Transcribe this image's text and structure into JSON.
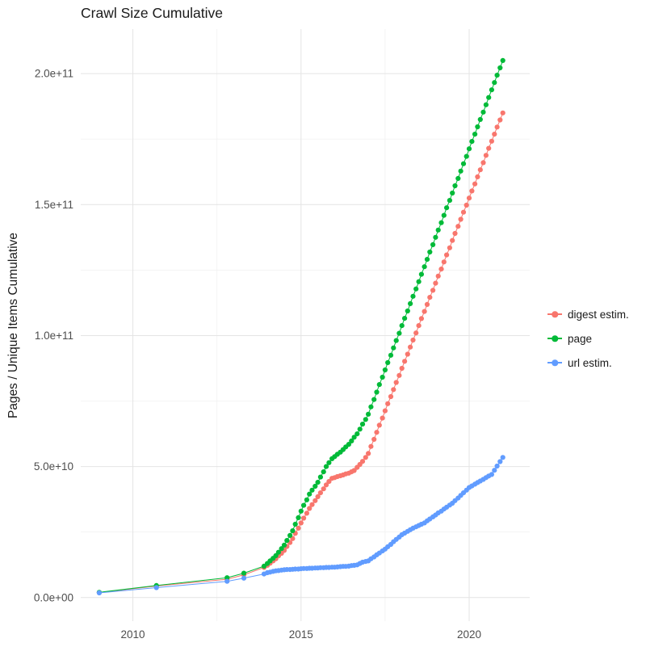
{
  "chart_data": {
    "type": "line",
    "marker": "point",
    "title": "Crawl Size Cumulative",
    "xlabel": "",
    "ylabel": "Pages / Unique Items Cumulative",
    "y_unit": 1000000000.0,
    "xlim": [
      2008.45,
      2021.8
    ],
    "ylim": [
      -9,
      217
    ],
    "grid": true,
    "legend_position": "right",
    "colors": {
      "grid_major": "#e4e4e4",
      "grid_minor": "#f2f2f2",
      "tick_text": "#4d4d4d",
      "title_text": "#1a1a1a",
      "background": "#ffffff"
    },
    "x_ticks": [
      {
        "value": 2010,
        "label": "2010"
      },
      {
        "value": 2015,
        "label": "2015"
      },
      {
        "value": 2020,
        "label": "2020"
      }
    ],
    "x_minor_ticks": [
      2012.5,
      2017.5
    ],
    "y_ticks": [
      {
        "value": 0,
        "label": "0.0e+00"
      },
      {
        "value": 50,
        "label": "5.0e+10"
      },
      {
        "value": 100,
        "label": "1.0e+11"
      },
      {
        "value": 150,
        "label": "1.5e+11"
      },
      {
        "value": 200,
        "label": "2.0e+11"
      }
    ],
    "y_minor_ticks": [
      25,
      75,
      125,
      175
    ],
    "series": [
      {
        "name": "digest estim.",
        "color": "#F8766D",
        "points": [
          [
            2009.0,
            1.9
          ],
          [
            2010.7,
            4.4
          ],
          [
            2012.8,
            7.0
          ],
          [
            2013.3,
            8.7
          ],
          [
            2013.9,
            11.5
          ],
          [
            2014.0,
            12.3
          ],
          [
            2014.08,
            13.1
          ],
          [
            2014.17,
            14.0
          ],
          [
            2014.25,
            14.8
          ],
          [
            2014.33,
            15.9
          ],
          [
            2014.42,
            16.9
          ],
          [
            2014.5,
            18.0
          ],
          [
            2014.58,
            19.5
          ],
          [
            2014.67,
            21.0
          ],
          [
            2014.75,
            22.5
          ],
          [
            2014.83,
            24.5
          ],
          [
            2014.92,
            26.5
          ],
          [
            2015.0,
            28.5
          ],
          [
            2015.08,
            30.3
          ],
          [
            2015.17,
            32.2
          ],
          [
            2015.25,
            34.0
          ],
          [
            2015.33,
            35.5
          ],
          [
            2015.42,
            37.0
          ],
          [
            2015.5,
            38.5
          ],
          [
            2015.58,
            40.0
          ],
          [
            2015.67,
            41.5
          ],
          [
            2015.75,
            43.0
          ],
          [
            2015.83,
            44.3
          ],
          [
            2015.92,
            45.5
          ],
          [
            2016.0,
            45.8
          ],
          [
            2016.08,
            46.2
          ],
          [
            2016.17,
            46.5
          ],
          [
            2016.25,
            46.8
          ],
          [
            2016.33,
            47.2
          ],
          [
            2016.42,
            47.5
          ],
          [
            2016.5,
            48.0
          ],
          [
            2016.58,
            48.5
          ],
          [
            2016.67,
            49.7
          ],
          [
            2016.75,
            50.8
          ],
          [
            2016.83,
            52.0
          ],
          [
            2016.92,
            53.5
          ],
          [
            2017.0,
            55.0
          ],
          [
            2017.08,
            57.7
          ],
          [
            2017.17,
            60.4
          ],
          [
            2017.25,
            63.1
          ],
          [
            2017.33,
            65.8
          ],
          [
            2017.42,
            68.5
          ],
          [
            2017.5,
            71.3
          ],
          [
            2017.58,
            74.0
          ],
          [
            2017.67,
            76.7
          ],
          [
            2017.75,
            79.4
          ],
          [
            2017.83,
            82.1
          ],
          [
            2017.92,
            84.8
          ],
          [
            2018.0,
            87.5
          ],
          [
            2018.08,
            90.2
          ],
          [
            2018.17,
            92.9
          ],
          [
            2018.25,
            95.6
          ],
          [
            2018.33,
            98.3
          ],
          [
            2018.42,
            101.0
          ],
          [
            2018.5,
            103.8
          ],
          [
            2018.58,
            106.5
          ],
          [
            2018.67,
            109.2
          ],
          [
            2018.75,
            111.9
          ],
          [
            2018.83,
            114.6
          ],
          [
            2018.92,
            117.3
          ],
          [
            2019.0,
            120.0
          ],
          [
            2019.08,
            122.7
          ],
          [
            2019.17,
            125.4
          ],
          [
            2019.25,
            128.1
          ],
          [
            2019.33,
            130.8
          ],
          [
            2019.42,
            133.5
          ],
          [
            2019.5,
            136.3
          ],
          [
            2019.58,
            139.0
          ],
          [
            2019.67,
            141.7
          ],
          [
            2019.75,
            144.4
          ],
          [
            2019.83,
            147.1
          ],
          [
            2019.92,
            149.8
          ],
          [
            2020.0,
            152.5
          ],
          [
            2020.08,
            155.2
          ],
          [
            2020.17,
            157.9
          ],
          [
            2020.25,
            160.6
          ],
          [
            2020.33,
            163.3
          ],
          [
            2020.42,
            166.0
          ],
          [
            2020.5,
            168.8
          ],
          [
            2020.58,
            171.5
          ],
          [
            2020.67,
            174.2
          ],
          [
            2020.75,
            176.9
          ],
          [
            2020.83,
            179.6
          ],
          [
            2020.92,
            182.3
          ],
          [
            2021.0,
            185.0
          ]
        ]
      },
      {
        "name": "page",
        "color": "#00BA38",
        "points": [
          [
            2009.0,
            2.0
          ],
          [
            2010.7,
            4.6
          ],
          [
            2012.8,
            7.6
          ],
          [
            2013.3,
            9.3
          ],
          [
            2013.9,
            12.0
          ],
          [
            2014.0,
            13.0
          ],
          [
            2014.08,
            14.0
          ],
          [
            2014.17,
            15.0
          ],
          [
            2014.25,
            16.0
          ],
          [
            2014.33,
            17.3
          ],
          [
            2014.42,
            18.7
          ],
          [
            2014.5,
            20.0
          ],
          [
            2014.58,
            21.8
          ],
          [
            2014.67,
            23.7
          ],
          [
            2014.75,
            25.5
          ],
          [
            2014.83,
            28.0
          ],
          [
            2014.92,
            30.5
          ],
          [
            2015.0,
            33.0
          ],
          [
            2015.08,
            35.2
          ],
          [
            2015.17,
            37.3
          ],
          [
            2015.25,
            39.5
          ],
          [
            2015.33,
            41.0
          ],
          [
            2015.42,
            42.5
          ],
          [
            2015.5,
            44.0
          ],
          [
            2015.58,
            46.0
          ],
          [
            2015.67,
            48.0
          ],
          [
            2015.75,
            50.0
          ],
          [
            2015.83,
            51.5
          ],
          [
            2015.92,
            53.0
          ],
          [
            2016.0,
            53.8
          ],
          [
            2016.08,
            54.7
          ],
          [
            2016.17,
            55.5
          ],
          [
            2016.25,
            56.5
          ],
          [
            2016.33,
            57.5
          ],
          [
            2016.42,
            58.5
          ],
          [
            2016.5,
            59.8
          ],
          [
            2016.58,
            61.2
          ],
          [
            2016.67,
            62.5
          ],
          [
            2016.75,
            64.3
          ],
          [
            2016.83,
            66.2
          ],
          [
            2016.92,
            68.0
          ],
          [
            2017.0,
            70.0
          ],
          [
            2017.08,
            72.8
          ],
          [
            2017.17,
            75.6
          ],
          [
            2017.25,
            78.4
          ],
          [
            2017.33,
            81.3
          ],
          [
            2017.42,
            84.1
          ],
          [
            2017.5,
            86.9
          ],
          [
            2017.58,
            89.7
          ],
          [
            2017.67,
            92.5
          ],
          [
            2017.75,
            95.3
          ],
          [
            2017.83,
            98.1
          ],
          [
            2017.92,
            100.9
          ],
          [
            2018.0,
            103.8
          ],
          [
            2018.08,
            106.6
          ],
          [
            2018.17,
            109.4
          ],
          [
            2018.25,
            112.2
          ],
          [
            2018.33,
            115.0
          ],
          [
            2018.42,
            117.8
          ],
          [
            2018.5,
            120.6
          ],
          [
            2018.58,
            123.4
          ],
          [
            2018.67,
            126.3
          ],
          [
            2018.75,
            129.1
          ],
          [
            2018.83,
            131.9
          ],
          [
            2018.92,
            134.7
          ],
          [
            2019.0,
            137.5
          ],
          [
            2019.08,
            140.3
          ],
          [
            2019.17,
            143.1
          ],
          [
            2019.25,
            145.9
          ],
          [
            2019.33,
            148.8
          ],
          [
            2019.42,
            151.6
          ],
          [
            2019.5,
            154.4
          ],
          [
            2019.58,
            157.2
          ],
          [
            2019.67,
            160.0
          ],
          [
            2019.75,
            162.8
          ],
          [
            2019.83,
            165.6
          ],
          [
            2019.92,
            168.4
          ],
          [
            2020.0,
            171.3
          ],
          [
            2020.08,
            174.1
          ],
          [
            2020.17,
            176.9
          ],
          [
            2020.25,
            179.7
          ],
          [
            2020.33,
            182.5
          ],
          [
            2020.42,
            185.3
          ],
          [
            2020.5,
            188.1
          ],
          [
            2020.58,
            190.9
          ],
          [
            2020.67,
            193.8
          ],
          [
            2020.75,
            196.6
          ],
          [
            2020.83,
            199.4
          ],
          [
            2020.92,
            202.2
          ],
          [
            2021.0,
            205.0
          ]
        ]
      },
      {
        "name": "url estim.",
        "color": "#619CFF",
        "points": [
          [
            2009.0,
            1.8
          ],
          [
            2010.7,
            3.8
          ],
          [
            2012.8,
            6.2
          ],
          [
            2013.3,
            7.4
          ],
          [
            2013.9,
            9.0
          ],
          [
            2014.0,
            9.5
          ],
          [
            2014.08,
            9.7
          ],
          [
            2014.17,
            10.0
          ],
          [
            2014.25,
            10.2
          ],
          [
            2014.33,
            10.3
          ],
          [
            2014.42,
            10.5
          ],
          [
            2014.5,
            10.6
          ],
          [
            2014.58,
            10.7
          ],
          [
            2014.67,
            10.7
          ],
          [
            2014.75,
            10.8
          ],
          [
            2014.83,
            10.9
          ],
          [
            2014.92,
            10.9
          ],
          [
            2015.0,
            11.0
          ],
          [
            2015.08,
            11.1
          ],
          [
            2015.17,
            11.1
          ],
          [
            2015.25,
            11.2
          ],
          [
            2015.33,
            11.2
          ],
          [
            2015.42,
            11.3
          ],
          [
            2015.5,
            11.3
          ],
          [
            2015.58,
            11.4
          ],
          [
            2015.67,
            11.4
          ],
          [
            2015.75,
            11.5
          ],
          [
            2015.83,
            11.5
          ],
          [
            2015.92,
            11.6
          ],
          [
            2016.0,
            11.6
          ],
          [
            2016.08,
            11.7
          ],
          [
            2016.17,
            11.8
          ],
          [
            2016.25,
            11.9
          ],
          [
            2016.33,
            11.9
          ],
          [
            2016.42,
            12.0
          ],
          [
            2016.5,
            12.2
          ],
          [
            2016.58,
            12.3
          ],
          [
            2016.67,
            12.5
          ],
          [
            2016.75,
            13.0
          ],
          [
            2016.83,
            13.5
          ],
          [
            2016.92,
            13.8
          ],
          [
            2017.0,
            14.0
          ],
          [
            2017.08,
            14.8
          ],
          [
            2017.17,
            15.5
          ],
          [
            2017.25,
            16.3
          ],
          [
            2017.33,
            17.0
          ],
          [
            2017.42,
            17.8
          ],
          [
            2017.5,
            18.5
          ],
          [
            2017.58,
            19.4
          ],
          [
            2017.67,
            20.3
          ],
          [
            2017.75,
            21.3
          ],
          [
            2017.83,
            22.2
          ],
          [
            2017.92,
            23.1
          ],
          [
            2018.0,
            24.0
          ],
          [
            2018.08,
            24.6
          ],
          [
            2018.17,
            25.3
          ],
          [
            2018.25,
            25.9
          ],
          [
            2018.33,
            26.5
          ],
          [
            2018.42,
            27.0
          ],
          [
            2018.5,
            27.5
          ],
          [
            2018.58,
            28.0
          ],
          [
            2018.67,
            28.5
          ],
          [
            2018.75,
            29.3
          ],
          [
            2018.83,
            30.0
          ],
          [
            2018.92,
            30.8
          ],
          [
            2019.0,
            31.5
          ],
          [
            2019.08,
            32.3
          ],
          [
            2019.17,
            33.0
          ],
          [
            2019.25,
            33.8
          ],
          [
            2019.33,
            34.5
          ],
          [
            2019.42,
            35.3
          ],
          [
            2019.5,
            36.0
          ],
          [
            2019.58,
            37.0
          ],
          [
            2019.67,
            38.0
          ],
          [
            2019.75,
            39.0
          ],
          [
            2019.83,
            40.0
          ],
          [
            2019.92,
            41.0
          ],
          [
            2020.0,
            42.0
          ],
          [
            2020.08,
            42.6
          ],
          [
            2020.17,
            43.3
          ],
          [
            2020.25,
            43.9
          ],
          [
            2020.33,
            44.5
          ],
          [
            2020.42,
            45.1
          ],
          [
            2020.5,
            45.8
          ],
          [
            2020.58,
            46.4
          ],
          [
            2020.67,
            47.0
          ],
          [
            2020.75,
            48.6
          ],
          [
            2020.83,
            50.2
          ],
          [
            2020.92,
            51.9
          ],
          [
            2021.0,
            53.5
          ]
        ]
      }
    ]
  }
}
